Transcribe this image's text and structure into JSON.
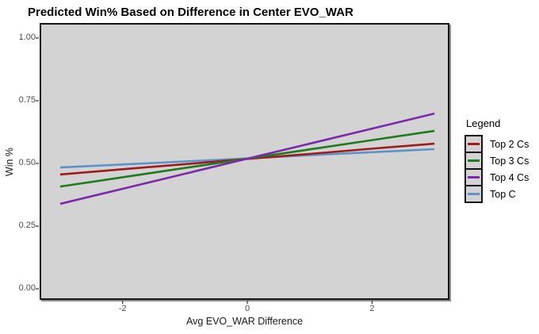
{
  "chart_data": {
    "type": "line",
    "title": "Predicted Win% Based on Difference in Center EVO_WAR",
    "xlabel": "Avg EVO_WAR Difference",
    "ylabel": "Win %",
    "legend_title": "Legend",
    "legend_position": "right",
    "grid": false,
    "panel_background": "#D3D3D3",
    "tick_text_color": "#4D4D4D",
    "xlim": [
      -3.33,
      3.24
    ],
    "ylim": [
      -0.044,
      1.06
    ],
    "xticks": [
      -2,
      0,
      2
    ],
    "xtick_labels": [
      "-2",
      "0",
      "2"
    ],
    "yticks": [
      0,
      0.25,
      0.5,
      0.75,
      1
    ],
    "ytick_labels": [
      "0.00",
      "0.25",
      "0.50",
      "0.75",
      "1.00"
    ],
    "x": [
      -3,
      -2,
      -1,
      0,
      1,
      2,
      3
    ],
    "series": [
      {
        "name": "Top 2 Cs",
        "color": "#9E1C1C",
        "values": [
          0.456,
          0.477,
          0.497,
          0.518,
          0.538,
          0.559,
          0.579
        ]
      },
      {
        "name": "Top 3 Cs",
        "color": "#1E7B1E",
        "values": [
          0.408,
          0.445,
          0.482,
          0.519,
          0.556,
          0.593,
          0.63
        ]
      },
      {
        "name": "Top 4 Cs",
        "color": "#7A2AA8",
        "values": [
          0.339,
          0.399,
          0.459,
          0.519,
          0.579,
          0.639,
          0.699
        ]
      },
      {
        "name": "Top C",
        "color": "#5B94C8",
        "values": [
          0.484,
          0.496,
          0.508,
          0.52,
          0.533,
          0.545,
          0.557
        ]
      }
    ],
    "draw_order": [
      "Top C",
      "Top 2 Cs",
      "Top 3 Cs",
      "Top 4 Cs"
    ]
  }
}
